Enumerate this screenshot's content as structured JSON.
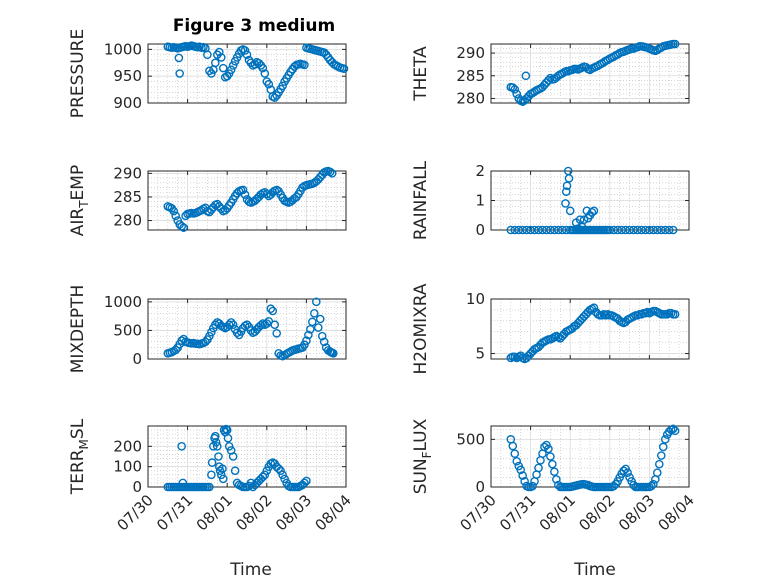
{
  "figure": {
    "title": "Figure 3 medium",
    "xlabel": "Time",
    "x_tick_labels": [
      "07/30",
      "07/31",
      "08/01",
      "08/02",
      "08/03",
      "08/04"
    ]
  },
  "chart_data": [
    {
      "type": "scatter",
      "ylabel": "PRESSURE",
      "ylim": [
        900,
        1010
      ],
      "yticks": [
        900,
        950,
        1000
      ],
      "x": [
        0.5,
        0.55,
        0.6,
        0.65,
        0.7,
        0.75,
        0.8,
        0.85,
        0.9,
        0.95,
        1.0,
        1.05,
        1.1,
        1.15,
        1.2,
        1.25,
        1.3,
        1.35,
        1.4,
        1.45,
        1.5,
        1.55,
        1.6,
        1.65,
        1.7,
        1.75,
        1.8,
        1.85,
        1.9,
        1.95,
        2.0,
        2.05,
        2.1,
        2.15,
        2.2,
        2.25,
        2.3,
        2.35,
        2.4,
        2.45,
        2.5,
        2.55,
        2.6,
        2.65,
        2.7,
        2.75,
        2.8,
        2.85,
        2.9,
        2.95,
        3.0,
        3.05,
        3.1,
        3.15,
        3.2,
        3.25,
        3.3,
        3.35,
        3.4,
        3.45,
        3.5,
        3.55,
        3.6,
        3.65,
        3.7,
        3.75,
        3.8,
        3.85,
        3.9,
        3.95,
        4.0,
        4.05,
        4.1,
        4.15,
        4.2,
        4.25,
        4.3,
        4.35,
        4.4,
        4.45,
        4.5,
        4.55,
        4.6,
        4.65,
        4.7,
        4.75,
        4.8,
        4.85,
        4.9,
        4.95,
        0.78,
        0.8
      ],
      "y": [
        1005,
        1004,
        1003,
        1004,
        1003,
        1002,
        1003,
        1004,
        1005,
        1006,
        1005,
        1006,
        1007,
        1006,
        1005,
        1004,
        1005,
        1003,
        1004,
        1002,
        990,
        960,
        955,
        962,
        975,
        990,
        995,
        985,
        965,
        948,
        950,
        955,
        962,
        970,
        978,
        985,
        992,
        998,
        1000,
        998,
        990,
        980,
        975,
        970,
        972,
        976,
        974,
        970,
        965,
        955,
        940,
        935,
        925,
        912,
        910,
        914,
        920,
        926,
        932,
        940,
        946,
        952,
        958,
        963,
        968,
        971,
        972,
        973,
        972,
        971,
        1003,
        1002,
        1001,
        1000,
        999,
        998,
        997,
        996,
        995,
        994,
        990,
        985,
        980,
        976,
        972,
        970,
        968,
        966,
        965,
        964,
        984,
        955
      ]
    },
    {
      "type": "scatter",
      "ylabel": "THETA",
      "ylim": [
        279,
        292
      ],
      "yticks": [
        280,
        285,
        290
      ],
      "x": [
        0.5,
        0.55,
        0.6,
        0.65,
        0.7,
        0.75,
        0.8,
        0.85,
        0.9,
        0.95,
        1.0,
        1.05,
        1.1,
        1.15,
        1.2,
        1.25,
        1.3,
        1.35,
        1.4,
        1.45,
        1.5,
        1.55,
        1.6,
        1.65,
        1.7,
        1.75,
        1.8,
        1.85,
        1.9,
        1.95,
        2.0,
        2.05,
        2.1,
        2.15,
        2.2,
        2.25,
        2.3,
        2.35,
        2.4,
        2.45,
        2.5,
        2.55,
        2.6,
        2.65,
        2.7,
        2.75,
        2.8,
        2.85,
        2.9,
        2.95,
        3.0,
        3.05,
        3.1,
        3.15,
        3.2,
        3.25,
        3.3,
        3.35,
        3.4,
        3.45,
        3.5,
        3.55,
        3.6,
        3.65,
        3.7,
        3.75,
        3.8,
        3.85,
        3.9,
        3.95,
        4.0,
        4.05,
        4.1,
        4.15,
        4.2,
        4.25,
        4.3,
        4.35,
        4.4,
        4.45,
        4.5,
        4.55,
        4.6,
        4.65,
        0.88
      ],
      "y": [
        282.5,
        282.4,
        282,
        281,
        280,
        279.5,
        279.3,
        279.6,
        280,
        280.5,
        281,
        281.2,
        281.5,
        281.8,
        282,
        282.2,
        282.5,
        283,
        283.5,
        284,
        284.5,
        284.2,
        284.3,
        284.6,
        285,
        285.3,
        285.5,
        285.8,
        286,
        286,
        286.2,
        286.3,
        286.5,
        286.5,
        286.4,
        286.6,
        286.8,
        287,
        286.9,
        286.5,
        286.3,
        286.6,
        286.8,
        287,
        287.2,
        287.5,
        287.7,
        288,
        288.3,
        288.5,
        288.8,
        289,
        289.2,
        289.5,
        289.7,
        290,
        290.2,
        290.3,
        290.5,
        290.7,
        290.8,
        291,
        291,
        291.2,
        291.3,
        291.5,
        291.5,
        291.4,
        291.3,
        291.2,
        291,
        290.8,
        290.6,
        290.5,
        290.7,
        291,
        291.2,
        291.5,
        291.6,
        291.7,
        291.8,
        291.9,
        292,
        292.1,
        285
      ]
    },
    {
      "type": "scatter",
      "ylabel": "AIR_TEMP",
      "ylim": [
        278,
        290.5
      ],
      "yticks": [
        280,
        285,
        290
      ],
      "x": [
        0.5,
        0.55,
        0.6,
        0.65,
        0.7,
        0.75,
        0.8,
        0.85,
        0.9,
        0.95,
        1.0,
        1.05,
        1.1,
        1.15,
        1.2,
        1.25,
        1.3,
        1.35,
        1.4,
        1.45,
        1.5,
        1.55,
        1.6,
        1.65,
        1.7,
        1.75,
        1.8,
        1.85,
        1.9,
        1.95,
        2.0,
        2.05,
        2.1,
        2.15,
        2.2,
        2.25,
        2.3,
        2.35,
        2.4,
        2.45,
        2.5,
        2.55,
        2.6,
        2.65,
        2.7,
        2.75,
        2.8,
        2.85,
        2.9,
        2.95,
        3.0,
        3.05,
        3.1,
        3.15,
        3.2,
        3.25,
        3.3,
        3.35,
        3.4,
        3.45,
        3.5,
        3.55,
        3.6,
        3.65,
        3.7,
        3.75,
        3.8,
        3.85,
        3.9,
        3.95,
        4.0,
        4.05,
        4.1,
        4.15,
        4.2,
        4.25,
        4.3,
        4.35,
        4.4,
        4.45,
        4.5,
        4.55,
        4.6,
        4.65
      ],
      "y": [
        283,
        282.8,
        282.6,
        282,
        281,
        280,
        279.2,
        278.8,
        278.5,
        281,
        281.4,
        281.5,
        281.6,
        281.5,
        281.6,
        281.8,
        282,
        282.2,
        282.5,
        282.7,
        282,
        281.8,
        282.3,
        282.8,
        283.3,
        283.5,
        283,
        282.5,
        282,
        282.2,
        282.6,
        283.2,
        283.8,
        284.5,
        285.2,
        285.8,
        286.2,
        286.4,
        286.5,
        285.5,
        284.5,
        284,
        283.8,
        284,
        284.2,
        284.6,
        285,
        285.5,
        285.8,
        286,
        285.6,
        285.2,
        285.5,
        286,
        286.3,
        286.5,
        286.2,
        285.5,
        284.8,
        284.2,
        284,
        283.8,
        284,
        284.3,
        284.7,
        285,
        285.6,
        286.3,
        287,
        287.3,
        287.5,
        287.6,
        287.7,
        287.8,
        288,
        288.3,
        288.7,
        289.2,
        289.7,
        290.2,
        290.4,
        290.5,
        290.3,
        290
      ]
    },
    {
      "type": "scatter",
      "ylabel": "RAINFALL",
      "ylim": [
        0,
        2
      ],
      "yticks": [
        0,
        1,
        2
      ],
      "x": [
        0.5,
        0.6,
        0.7,
        0.8,
        0.9,
        1.0,
        1.1,
        1.2,
        1.3,
        1.4,
        1.5,
        1.6,
        1.7,
        1.8,
        1.9,
        2.0,
        2.05,
        2.1,
        2.15,
        2.2,
        2.25,
        2.3,
        2.35,
        2.4,
        2.45,
        2.5,
        2.55,
        2.6,
        2.65,
        2.7,
        2.75,
        2.8,
        2.85,
        2.9,
        2.95,
        3.0,
        3.1,
        3.2,
        3.3,
        3.4,
        3.5,
        3.6,
        3.7,
        3.8,
        3.9,
        4.0,
        4.1,
        4.2,
        4.3,
        4.4,
        4.5,
        4.6,
        1.88,
        1.9,
        1.92,
        1.95,
        1.97,
        2.0,
        2.15,
        2.2,
        2.25,
        2.3,
        2.35,
        2.42,
        2.45,
        2.5,
        2.55,
        2.6
      ],
      "y": [
        0,
        0,
        0,
        0,
        0,
        0,
        0,
        0,
        0,
        0,
        0,
        0,
        0,
        0,
        0,
        0,
        0,
        0,
        0,
        0,
        0,
        0,
        0,
        0,
        0,
        0,
        0,
        0,
        0,
        0,
        0,
        0,
        0,
        0,
        0,
        0,
        0,
        0,
        0,
        0,
        0,
        0,
        0,
        0,
        0,
        0,
        0,
        0,
        0,
        0,
        0,
        0,
        0.9,
        1.3,
        1.5,
        2.0,
        1.75,
        0.65,
        0.25,
        0.05,
        0.35,
        0.1,
        0.35,
        0.65,
        0.4,
        0.5,
        0.6,
        0.65
      ]
    },
    {
      "type": "scatter",
      "ylabel": "MIXDEPTH",
      "ylim": [
        0,
        1050
      ],
      "yticks": [
        0,
        500,
        1000
      ],
      "x": [
        0.5,
        0.55,
        0.6,
        0.65,
        0.7,
        0.75,
        0.8,
        0.85,
        0.9,
        0.95,
        1.0,
        1.05,
        1.1,
        1.15,
        1.2,
        1.25,
        1.3,
        1.35,
        1.4,
        1.45,
        1.5,
        1.55,
        1.6,
        1.65,
        1.7,
        1.75,
        1.8,
        1.85,
        1.9,
        1.95,
        2.0,
        2.05,
        2.1,
        2.15,
        2.2,
        2.25,
        2.3,
        2.35,
        2.4,
        2.45,
        2.5,
        2.55,
        2.6,
        2.65,
        2.7,
        2.75,
        2.8,
        2.85,
        2.9,
        2.95,
        3.0,
        3.05,
        3.1,
        3.15,
        3.2,
        3.25,
        3.3,
        3.35,
        3.4,
        3.45,
        3.5,
        3.55,
        3.6,
        3.65,
        3.7,
        3.75,
        3.8,
        3.85,
        3.9,
        3.95,
        4.0,
        4.05,
        4.1,
        4.15,
        4.2,
        4.25,
        4.3,
        4.35,
        4.4,
        4.45,
        4.5,
        4.55,
        4.6,
        4.62,
        4.65,
        4.68
      ],
      "y": [
        100,
        110,
        120,
        140,
        160,
        200,
        260,
        320,
        350,
        300,
        290,
        280,
        275,
        280,
        270,
        265,
        260,
        270,
        280,
        300,
        340,
        400,
        470,
        540,
        600,
        640,
        620,
        580,
        560,
        540,
        560,
        600,
        640,
        600,
        520,
        460,
        420,
        480,
        540,
        580,
        600,
        560,
        500,
        460,
        480,
        520,
        560,
        590,
        620,
        600,
        620,
        660,
        880,
        840,
        600,
        450,
        100,
        60,
        50,
        70,
        90,
        110,
        130,
        150,
        160,
        170,
        180,
        190,
        200,
        250,
        320,
        420,
        520,
        650,
        800,
        1000,
        550,
        700,
        400,
        300,
        200,
        150,
        130,
        120,
        110,
        100
      ]
    },
    {
      "type": "scatter",
      "ylabel": "H2OMIXRA",
      "ylim": [
        4.5,
        10
      ],
      "yticks": [
        5,
        10
      ],
      "x": [
        0.5,
        0.55,
        0.6,
        0.65,
        0.7,
        0.75,
        0.8,
        0.85,
        0.9,
        0.95,
        1.0,
        1.05,
        1.1,
        1.15,
        1.2,
        1.25,
        1.3,
        1.35,
        1.4,
        1.45,
        1.5,
        1.55,
        1.6,
        1.65,
        1.7,
        1.75,
        1.8,
        1.85,
        1.9,
        1.95,
        2.0,
        2.05,
        2.1,
        2.15,
        2.2,
        2.25,
        2.3,
        2.35,
        2.4,
        2.45,
        2.5,
        2.55,
        2.6,
        2.65,
        2.7,
        2.75,
        2.8,
        2.85,
        2.9,
        2.95,
        3.0,
        3.05,
        3.1,
        3.15,
        3.2,
        3.25,
        3.3,
        3.35,
        3.4,
        3.45,
        3.5,
        3.55,
        3.6,
        3.65,
        3.7,
        3.75,
        3.8,
        3.85,
        3.9,
        3.95,
        4.0,
        4.05,
        4.1,
        4.15,
        4.2,
        4.25,
        4.3,
        4.35,
        4.4,
        4.45,
        4.5,
        4.55,
        4.6,
        4.65
      ],
      "y": [
        4.6,
        4.7,
        4.7,
        4.6,
        4.7,
        4.8,
        4.6,
        4.5,
        4.6,
        4.8,
        5.0,
        5.2,
        5.4,
        5.5,
        5.6,
        5.8,
        6.0,
        6.1,
        6.2,
        6.3,
        6.3,
        6.4,
        6.5,
        6.6,
        6.5,
        6.4,
        6.6,
        6.8,
        7.0,
        7.1,
        7.2,
        7.3,
        7.5,
        7.6,
        7.8,
        8.0,
        8.2,
        8.4,
        8.6,
        8.8,
        9.0,
        9.1,
        9.2,
        8.8,
        8.6,
        8.5,
        8.5,
        8.6,
        8.5,
        8.6,
        8.5,
        8.5,
        8.4,
        8.3,
        8.2,
        8.0,
        7.9,
        7.8,
        7.9,
        8.1,
        8.2,
        8.3,
        8.4,
        8.5,
        8.5,
        8.6,
        8.6,
        8.7,
        8.7,
        8.8,
        8.7,
        8.8,
        8.9,
        8.9,
        8.8,
        8.7,
        8.6,
        8.6,
        8.6,
        8.6,
        8.7,
        8.7,
        8.6,
        8.6
      ]
    },
    {
      "type": "scatter",
      "ylabel": "TERR_MSL",
      "ylim": [
        0,
        300
      ],
      "yticks": [
        0,
        100,
        200
      ],
      "x": [
        0.5,
        0.55,
        0.6,
        0.65,
        0.7,
        0.75,
        0.8,
        0.85,
        0.9,
        0.95,
        1.0,
        1.05,
        1.1,
        1.15,
        1.2,
        1.25,
        1.3,
        1.35,
        1.4,
        1.45,
        1.5,
        1.55,
        1.6,
        1.62,
        1.65,
        1.68,
        1.7,
        1.72,
        1.75,
        1.78,
        1.8,
        1.82,
        1.85,
        1.88,
        1.9,
        1.92,
        1.95,
        1.97,
        2.0,
        2.02,
        2.05,
        2.1,
        2.15,
        2.2,
        2.25,
        2.3,
        2.35,
        2.4,
        2.45,
        2.5,
        2.55,
        2.6,
        2.65,
        2.7,
        2.75,
        2.8,
        2.85,
        2.9,
        2.95,
        3.0,
        3.05,
        3.1,
        3.15,
        3.2,
        3.25,
        3.3,
        3.35,
        3.4,
        3.45,
        3.5,
        3.55,
        3.6,
        3.65,
        3.7,
        3.75,
        3.8,
        3.85,
        3.9,
        3.95,
        4.0,
        0.85,
        0.88
      ],
      "y": [
        0,
        0,
        0,
        0,
        0,
        0,
        0,
        0,
        0,
        0,
        0,
        0,
        0,
        0,
        0,
        0,
        0,
        0,
        0,
        0,
        0,
        0,
        60,
        120,
        200,
        240,
        250,
        220,
        200,
        150,
        100,
        80,
        60,
        90,
        40,
        280,
        270,
        285,
        280,
        240,
        200,
        180,
        150,
        80,
        20,
        10,
        5,
        0,
        0,
        0,
        5,
        20,
        0,
        10,
        20,
        30,
        40,
        50,
        60,
        80,
        100,
        115,
        120,
        115,
        100,
        90,
        80,
        60,
        40,
        20,
        5,
        0,
        0,
        0,
        0,
        0,
        5,
        10,
        20,
        30,
        200,
        20
      ]
    },
    {
      "type": "scatter",
      "ylabel": "SUN_FLUX",
      "ylim": [
        0,
        640
      ],
      "yticks": [
        0,
        500
      ],
      "x": [
        0.5,
        0.55,
        0.6,
        0.65,
        0.7,
        0.75,
        0.8,
        0.85,
        0.9,
        0.95,
        1.0,
        1.05,
        1.1,
        1.15,
        1.2,
        1.25,
        1.3,
        1.35,
        1.4,
        1.45,
        1.5,
        1.55,
        1.6,
        1.65,
        1.7,
        1.75,
        1.8,
        1.85,
        1.9,
        1.95,
        2.0,
        2.05,
        2.1,
        2.15,
        2.2,
        2.25,
        2.3,
        2.35,
        2.4,
        2.45,
        2.5,
        2.55,
        2.6,
        2.65,
        2.7,
        2.75,
        2.8,
        2.85,
        2.9,
        2.95,
        3.0,
        3.05,
        3.1,
        3.15,
        3.2,
        3.25,
        3.3,
        3.35,
        3.4,
        3.45,
        3.5,
        3.55,
        3.6,
        3.65,
        3.7,
        3.75,
        3.8,
        3.85,
        3.9,
        3.95,
        4.0,
        4.05,
        4.1,
        4.15,
        4.2,
        4.25,
        4.3,
        4.35,
        4.4,
        4.45,
        4.5,
        4.55,
        4.6,
        4.65
      ],
      "y": [
        500,
        430,
        350,
        270,
        220,
        180,
        120,
        60,
        10,
        0,
        0,
        10,
        60,
        130,
        200,
        280,
        350,
        420,
        440,
        400,
        320,
        240,
        160,
        80,
        20,
        0,
        0,
        0,
        0,
        0,
        0,
        5,
        10,
        15,
        20,
        25,
        30,
        30,
        25,
        20,
        10,
        5,
        0,
        0,
        0,
        0,
        0,
        0,
        0,
        0,
        0,
        0,
        10,
        30,
        60,
        100,
        140,
        170,
        190,
        150,
        100,
        60,
        20,
        0,
        0,
        0,
        0,
        0,
        0,
        0,
        0,
        10,
        30,
        80,
        150,
        240,
        330,
        420,
        500,
        550,
        580,
        600,
        610,
        590
      ]
    }
  ]
}
